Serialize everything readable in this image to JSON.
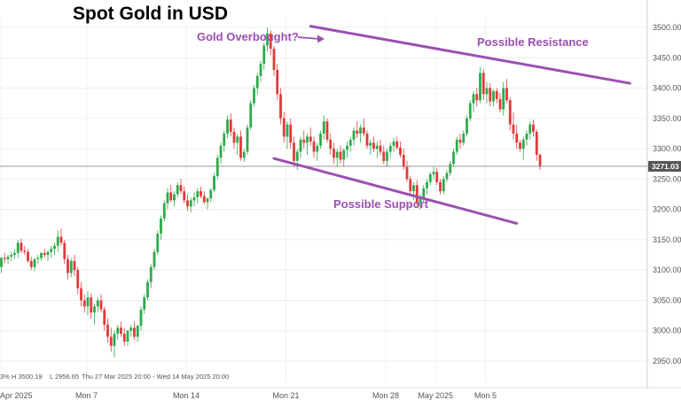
{
  "chart_data": {
    "type": "candlestick",
    "title": "Spot Gold in USD",
    "xlabel": "",
    "ylabel": "",
    "ylim": [
      2910,
      3540
    ],
    "y_ticks": [
      2950,
      3000,
      3050,
      3100,
      3150,
      3200,
      3250,
      3300,
      3350,
      3400,
      3450,
      3500
    ],
    "y_tick_labels": [
      "2950.00",
      "3000.00",
      "3050.00",
      "3100.00",
      "3150.00",
      "3200.00",
      "3250.00",
      "3300.00",
      "3350.00",
      "3400.00",
      "3450.00",
      "3500.00"
    ],
    "x_ticks": [
      {
        "index": 0,
        "label": "Apr 2025"
      },
      {
        "index": 26,
        "label": "Mon 7"
      },
      {
        "index": 56,
        "label": "Mon 14"
      },
      {
        "index": 86,
        "label": "Mon 21"
      },
      {
        "index": 116,
        "label": "Mon 28"
      },
      {
        "index": 131,
        "label": "May 2025"
      },
      {
        "index": 146,
        "label": "Mon 5"
      }
    ],
    "last_price": 3271.03,
    "last_price_label": "3271.03",
    "stats_text": [
      "3%",
      "H 3500.19",
      "L 2956.65",
      "Thu 27 Mar 2025 20:00 - Wed 14 May 2025 20:00"
    ],
    "colors": {
      "up": "#2eaa4a",
      "down": "#e03a3a",
      "line": "#9b4fb0",
      "last": "#555555"
    },
    "annotations": [
      {
        "text": "Gold Overbought?",
        "x_index": 93,
        "y": 3500,
        "arrow": true
      },
      {
        "text": "Possible Resistance",
        "x_index": 137,
        "y": 3470
      },
      {
        "text": "Possible Support",
        "x_index": 98,
        "y": 3200
      }
    ],
    "trendlines": [
      {
        "name": "Possible Resistance",
        "x1_index": 93,
        "y1": 3502,
        "x2_index": 189,
        "y2": 3408
      },
      {
        "name": "Possible Support",
        "x1_index": 82,
        "y1": 3284,
        "x2_index": 155,
        "y2": 3177
      }
    ],
    "candles": [
      [
        3105,
        3122,
        3095,
        3120
      ],
      [
        3120,
        3128,
        3112,
        3118
      ],
      [
        3118,
        3125,
        3110,
        3122
      ],
      [
        3122,
        3130,
        3115,
        3125
      ],
      [
        3125,
        3135,
        3118,
        3128
      ],
      [
        3128,
        3150,
        3120,
        3145
      ],
      [
        3145,
        3152,
        3128,
        3132
      ],
      [
        3132,
        3140,
        3125,
        3130
      ],
      [
        3130,
        3135,
        3112,
        3115
      ],
      [
        3115,
        3122,
        3100,
        3105
      ],
      [
        3105,
        3120,
        3098,
        3118
      ],
      [
        3118,
        3125,
        3110,
        3120
      ],
      [
        3120,
        3130,
        3115,
        3128
      ],
      [
        3128,
        3135,
        3120,
        3125
      ],
      [
        3125,
        3132,
        3115,
        3130
      ],
      [
        3130,
        3140,
        3120,
        3135
      ],
      [
        3135,
        3145,
        3125,
        3140
      ],
      [
        3140,
        3165,
        3130,
        3155
      ],
      [
        3155,
        3168,
        3140,
        3145
      ],
      [
        3145,
        3150,
        3110,
        3118
      ],
      [
        3118,
        3125,
        3085,
        3095
      ],
      [
        3095,
        3120,
        3088,
        3115
      ],
      [
        3115,
        3125,
        3090,
        3100
      ],
      [
        3100,
        3105,
        3060,
        3070
      ],
      [
        3070,
        3080,
        3040,
        3050
      ],
      [
        3050,
        3060,
        3030,
        3040
      ],
      [
        3040,
        3065,
        3025,
        3055
      ],
      [
        3055,
        3062,
        3020,
        3030
      ],
      [
        3030,
        3045,
        3010,
        3040
      ],
      [
        3040,
        3055,
        3030,
        3050
      ],
      [
        3050,
        3060,
        3030,
        3035
      ],
      [
        3035,
        3040,
        3000,
        3010
      ],
      [
        3010,
        3020,
        2980,
        2990
      ],
      [
        2990,
        3005,
        2965,
        2975
      ],
      [
        2975,
        3000,
        2956,
        2995
      ],
      [
        2995,
        3010,
        2985,
        3005
      ],
      [
        3005,
        3015,
        2990,
        2995
      ],
      [
        2995,
        3005,
        2975,
        2982
      ],
      [
        2982,
        3002,
        2975,
        3000
      ],
      [
        3000,
        3010,
        2990,
        3005
      ],
      [
        3005,
        3015,
        2985,
        2990
      ],
      [
        2990,
        3010,
        2982,
        3008
      ],
      [
        3008,
        3040,
        3000,
        3035
      ],
      [
        3035,
        3060,
        3028,
        3055
      ],
      [
        3055,
        3085,
        3050,
        3080
      ],
      [
        3080,
        3110,
        3070,
        3105
      ],
      [
        3105,
        3135,
        3100,
        3130
      ],
      [
        3130,
        3165,
        3125,
        3160
      ],
      [
        3160,
        3190,
        3150,
        3185
      ],
      [
        3185,
        3215,
        3180,
        3210
      ],
      [
        3210,
        3235,
        3200,
        3228
      ],
      [
        3228,
        3240,
        3212,
        3215
      ],
      [
        3215,
        3230,
        3205,
        3225
      ],
      [
        3225,
        3245,
        3220,
        3240
      ],
      [
        3240,
        3250,
        3225,
        3230
      ],
      [
        3230,
        3238,
        3210,
        3215
      ],
      [
        3215,
        3225,
        3198,
        3205
      ],
      [
        3205,
        3220,
        3195,
        3215
      ],
      [
        3215,
        3228,
        3205,
        3220
      ],
      [
        3220,
        3235,
        3210,
        3230
      ],
      [
        3230,
        3238,
        3218,
        3222
      ],
      [
        3222,
        3230,
        3208,
        3212
      ],
      [
        3212,
        3220,
        3200,
        3218
      ],
      [
        3218,
        3235,
        3212,
        3232
      ],
      [
        3232,
        3260,
        3228,
        3255
      ],
      [
        3255,
        3290,
        3250,
        3285
      ],
      [
        3285,
        3310,
        3275,
        3305
      ],
      [
        3305,
        3330,
        3295,
        3325
      ],
      [
        3325,
        3355,
        3318,
        3348
      ],
      [
        3348,
        3358,
        3320,
        3328
      ],
      [
        3328,
        3335,
        3300,
        3310
      ],
      [
        3310,
        3325,
        3290,
        3320
      ],
      [
        3320,
        3330,
        3280,
        3285
      ],
      [
        3285,
        3300,
        3278,
        3295
      ],
      [
        3295,
        3340,
        3290,
        3335
      ],
      [
        3335,
        3380,
        3330,
        3375
      ],
      [
        3375,
        3405,
        3370,
        3400
      ],
      [
        3400,
        3425,
        3390,
        3420
      ],
      [
        3420,
        3445,
        3410,
        3440
      ],
      [
        3440,
        3475,
        3430,
        3470
      ],
      [
        3470,
        3500,
        3460,
        3490
      ],
      [
        3490,
        3495,
        3455,
        3465
      ],
      [
        3465,
        3470,
        3420,
        3430
      ],
      [
        3430,
        3440,
        3380,
        3390
      ],
      [
        3390,
        3400,
        3340,
        3350
      ],
      [
        3350,
        3360,
        3310,
        3320
      ],
      [
        3320,
        3345,
        3300,
        3340
      ],
      [
        3340,
        3350,
        3300,
        3310
      ],
      [
        3310,
        3320,
        3270,
        3280
      ],
      [
        3280,
        3300,
        3265,
        3295
      ],
      [
        3295,
        3320,
        3285,
        3315
      ],
      [
        3315,
        3330,
        3300,
        3310
      ],
      [
        3310,
        3325,
        3290,
        3320
      ],
      [
        3320,
        3335,
        3305,
        3312
      ],
      [
        3312,
        3320,
        3285,
        3295
      ],
      [
        3295,
        3310,
        3280,
        3305
      ],
      [
        3305,
        3330,
        3300,
        3325
      ],
      [
        3325,
        3355,
        3315,
        3345
      ],
      [
        3345,
        3350,
        3310,
        3315
      ],
      [
        3315,
        3325,
        3290,
        3300
      ],
      [
        3300,
        3310,
        3275,
        3285
      ],
      [
        3285,
        3300,
        3270,
        3295
      ],
      [
        3295,
        3305,
        3275,
        3282
      ],
      [
        3282,
        3300,
        3270,
        3298
      ],
      [
        3298,
        3312,
        3285,
        3305
      ],
      [
        3305,
        3320,
        3295,
        3315
      ],
      [
        3315,
        3335,
        3305,
        3330
      ],
      [
        3330,
        3345,
        3318,
        3325
      ],
      [
        3325,
        3340,
        3310,
        3335
      ],
      [
        3335,
        3350,
        3320,
        3325
      ],
      [
        3325,
        3330,
        3300,
        3305
      ],
      [
        3305,
        3315,
        3290,
        3310
      ],
      [
        3310,
        3320,
        3295,
        3300
      ],
      [
        3300,
        3312,
        3285,
        3305
      ],
      [
        3305,
        3315,
        3290,
        3295
      ],
      [
        3295,
        3305,
        3275,
        3280
      ],
      [
        3280,
        3300,
        3270,
        3295
      ],
      [
        3295,
        3310,
        3285,
        3305
      ],
      [
        3305,
        3318,
        3295,
        3312
      ],
      [
        3312,
        3320,
        3298,
        3302
      ],
      [
        3302,
        3312,
        3285,
        3290
      ],
      [
        3290,
        3300,
        3265,
        3270
      ],
      [
        3270,
        3280,
        3245,
        3250
      ],
      [
        3250,
        3255,
        3225,
        3230
      ],
      [
        3230,
        3245,
        3215,
        3240
      ],
      [
        3240,
        3248,
        3205,
        3210
      ],
      [
        3210,
        3225,
        3200,
        3220
      ],
      [
        3220,
        3240,
        3212,
        3235
      ],
      [
        3235,
        3250,
        3225,
        3245
      ],
      [
        3245,
        3262,
        3240,
        3258
      ],
      [
        3258,
        3270,
        3250,
        3262
      ],
      [
        3262,
        3268,
        3240,
        3245
      ],
      [
        3245,
        3250,
        3225,
        3230
      ],
      [
        3230,
        3255,
        3225,
        3250
      ],
      [
        3250,
        3265,
        3245,
        3260
      ],
      [
        3260,
        3280,
        3255,
        3275
      ],
      [
        3275,
        3300,
        3270,
        3295
      ],
      [
        3295,
        3320,
        3290,
        3315
      ],
      [
        3315,
        3325,
        3300,
        3310
      ],
      [
        3310,
        3330,
        3305,
        3325
      ],
      [
        3325,
        3355,
        3320,
        3350
      ],
      [
        3350,
        3380,
        3345,
        3375
      ],
      [
        3375,
        3395,
        3360,
        3390
      ],
      [
        3390,
        3400,
        3370,
        3380
      ],
      [
        3380,
        3435,
        3375,
        3425
      ],
      [
        3425,
        3432,
        3380,
        3390
      ],
      [
        3390,
        3410,
        3375,
        3400
      ],
      [
        3400,
        3408,
        3370,
        3378
      ],
      [
        3378,
        3398,
        3370,
        3395
      ],
      [
        3395,
        3400,
        3375,
        3382
      ],
      [
        3382,
        3392,
        3360,
        3365
      ],
      [
        3365,
        3410,
        3355,
        3400
      ],
      [
        3400,
        3415,
        3375,
        3380
      ],
      [
        3380,
        3385,
        3330,
        3340
      ],
      [
        3340,
        3360,
        3315,
        3325
      ],
      [
        3325,
        3340,
        3300,
        3310
      ],
      [
        3310,
        3315,
        3295,
        3300
      ],
      [
        3300,
        3320,
        3282,
        3315
      ],
      [
        3315,
        3330,
        3305,
        3325
      ],
      [
        3325,
        3345,
        3315,
        3340
      ],
      [
        3340,
        3348,
        3320,
        3328
      ],
      [
        3328,
        3332,
        3280,
        3290
      ],
      [
        3290,
        3292,
        3265,
        3271
      ]
    ]
  }
}
